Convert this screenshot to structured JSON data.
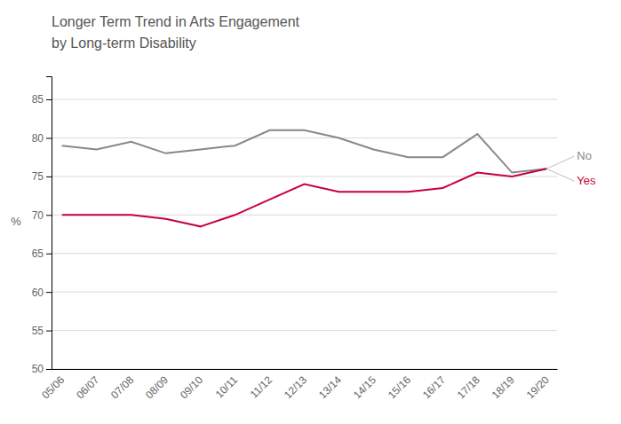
{
  "chart_data": {
    "type": "line",
    "title": "Longer Term Trend in Arts Engagement",
    "subtitle": "by Long-term Disability",
    "ylabel": "%",
    "categories": [
      "05/06",
      "06/07",
      "07/08",
      "08/09",
      "09/10",
      "10/11",
      "11/12",
      "12/13",
      "13/14",
      "14/15",
      "15/16",
      "16/17",
      "17/18",
      "18/19",
      "19/20"
    ],
    "series": [
      {
        "name": "No",
        "color": "#888888",
        "values": [
          79.0,
          78.5,
          79.5,
          78.0,
          78.5,
          79.0,
          81.0,
          81.0,
          80.0,
          78.5,
          77.5,
          77.5,
          80.5,
          75.5,
          76.0
        ]
      },
      {
        "name": "Yes",
        "color": "#c8003c",
        "values": [
          70.0,
          70.0,
          70.0,
          69.5,
          68.5,
          70.0,
          72.0,
          74.0,
          73.0,
          73.0,
          73.0,
          73.5,
          75.5,
          75.0,
          76.0
        ]
      }
    ],
    "ylim": [
      50,
      88
    ],
    "yticks": [
      50,
      55,
      60,
      65,
      70,
      75,
      80,
      85
    ],
    "grid": true
  }
}
